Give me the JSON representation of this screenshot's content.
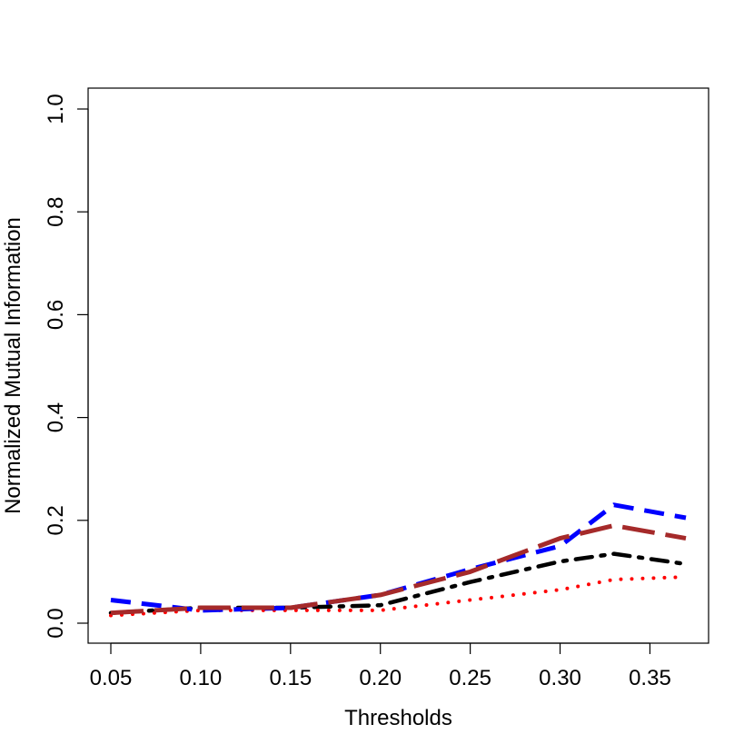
{
  "chart_data": {
    "type": "line",
    "title": "",
    "xlabel": "Thresholds",
    "ylabel": "Normalized Mutual Information",
    "xlim": [
      0.05,
      0.37
    ],
    "ylim": [
      0.0,
      1.0
    ],
    "x_ticks": [
      "0.05",
      "0.10",
      "0.15",
      "0.20",
      "0.25",
      "0.30",
      "0.35"
    ],
    "y_ticks": [
      "0.0",
      "0.2",
      "0.4",
      "0.6",
      "0.8",
      "1.0"
    ],
    "grid": false,
    "legend": "none",
    "x": [
      0.05,
      0.1,
      0.15,
      0.2,
      0.25,
      0.3,
      0.33,
      0.37
    ],
    "series": [
      {
        "color": "#000000",
        "line_style": "dotdash",
        "values": [
          0.02,
          0.03,
          0.03,
          0.035,
          0.08,
          0.12,
          0.135,
          0.115
        ]
      },
      {
        "color": "#ff0000",
        "line_style": "dotted",
        "values": [
          0.015,
          0.025,
          0.025,
          0.025,
          0.045,
          0.065,
          0.085,
          0.09
        ]
      },
      {
        "color": "#0000ff",
        "line_style": "dashed",
        "values": [
          0.045,
          0.025,
          0.03,
          0.055,
          0.105,
          0.15,
          0.23,
          0.205
        ]
      },
      {
        "color": "#a52a2a",
        "line_style": "longdash",
        "values": [
          0.02,
          0.03,
          0.03,
          0.055,
          0.1,
          0.165,
          0.19,
          0.165
        ]
      }
    ]
  }
}
